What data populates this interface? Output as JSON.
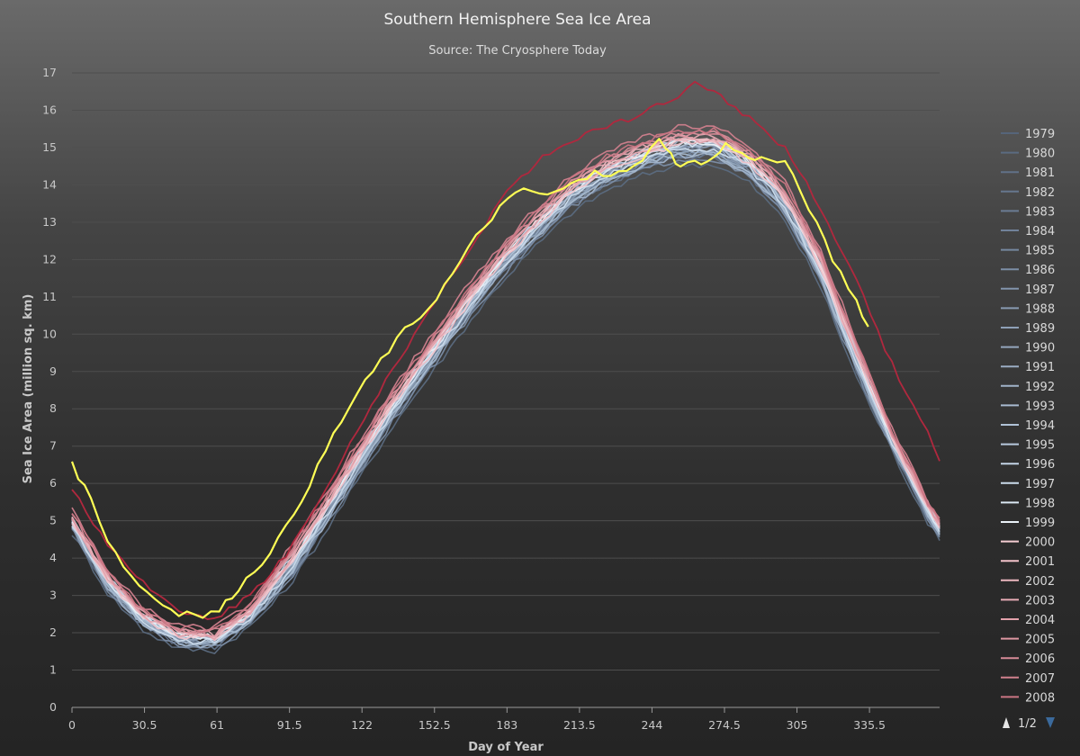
{
  "chart_data": {
    "type": "line",
    "title": "Southern Hemisphere Sea Ice Area",
    "subtitle": "Source: The Cryosphere Today",
    "xlabel": "Day of Year",
    "ylabel": "Sea Ice Area (million sq. km)",
    "xlim": [
      0,
      365
    ],
    "ylim": [
      0,
      17
    ],
    "x_ticks": [
      "0",
      "30.5",
      "61",
      "91.5",
      "122",
      "152.5",
      "183",
      "213.5",
      "244",
      "274.5",
      "305",
      "335.5"
    ],
    "y_ticks": [
      "0",
      "1",
      "2",
      "3",
      "4",
      "5",
      "6",
      "7",
      "8",
      "9",
      "10",
      "11",
      "12",
      "13",
      "14",
      "15",
      "16",
      "17"
    ],
    "grid": "horizontal",
    "legend_position": "right",
    "legend_pager": "1/2",
    "series_template": {
      "x": [
        0,
        15,
        30,
        45,
        60,
        75,
        90,
        105,
        120,
        135,
        150,
        165,
        180,
        195,
        210,
        225,
        240,
        255,
        270,
        285,
        300,
        315,
        330,
        345,
        360,
        365
      ],
      "y": [
        5.0,
        3.4,
        2.4,
        1.9,
        1.85,
        2.5,
        3.7,
        5.1,
        6.6,
        8.1,
        9.4,
        10.7,
        11.9,
        12.9,
        13.8,
        14.4,
        14.8,
        15.1,
        15.1,
        14.6,
        13.6,
        11.8,
        9.4,
        7.2,
        5.3,
        4.8
      ]
    },
    "series": [
      {
        "name": "1979",
        "color": "#56657a",
        "offset": -0.15
      },
      {
        "name": "1980",
        "color": "#5b6b81",
        "offset": -0.55
      },
      {
        "name": "1981",
        "color": "#617188",
        "offset": -0.35
      },
      {
        "name": "1982",
        "color": "#66778e",
        "offset": -0.25
      },
      {
        "name": "1983",
        "color": "#6b7c94",
        "offset": -0.3
      },
      {
        "name": "1984",
        "color": "#71829a",
        "offset": -0.2
      },
      {
        "name": "1985",
        "color": "#7688a0",
        "offset": -0.1
      },
      {
        "name": "1986",
        "color": "#7c8ea6",
        "offset": -0.4
      },
      {
        "name": "1987",
        "color": "#8294ac",
        "offset": -0.05
      },
      {
        "name": "1988",
        "color": "#889ab1",
        "offset": -0.15
      },
      {
        "name": "1989",
        "color": "#8ea0b7",
        "offset": -0.1
      },
      {
        "name": "1990",
        "color": "#94a6bd",
        "offset": -0.2
      },
      {
        "name": "1991",
        "color": "#9aacc3",
        "offset": 0.0
      },
      {
        "name": "1992",
        "color": "#a1b3c9",
        "offset": -0.3
      },
      {
        "name": "1993",
        "color": "#a8bad0",
        "offset": -0.25
      },
      {
        "name": "1994",
        "color": "#b0c2d7",
        "offset": -0.05
      },
      {
        "name": "1995",
        "color": "#b8cade",
        "offset": 0.05
      },
      {
        "name": "1996",
        "color": "#c2d3e5",
        "offset": 0.1
      },
      {
        "name": "1997",
        "color": "#ccdcec",
        "offset": -0.15
      },
      {
        "name": "1998",
        "color": "#dbe8f3",
        "offset": 0.0
      },
      {
        "name": "1999",
        "color": "#eaf2f8",
        "offset": 0.05
      },
      {
        "name": "2000",
        "color": "#f5cdd3",
        "offset": 0.1
      },
      {
        "name": "2001",
        "color": "#f1c2c9",
        "offset": 0.0
      },
      {
        "name": "2002",
        "color": "#ecb7bf",
        "offset": 0.15
      },
      {
        "name": "2003",
        "color": "#e7acb5",
        "offset": 0.2
      },
      {
        "name": "2004",
        "color": "#e2a1ab",
        "offset": 0.1
      },
      {
        "name": "2005",
        "color": "#dc96a1",
        "offset": 0.25
      },
      {
        "name": "2006",
        "color": "#d68b97",
        "offset": 0.3
      },
      {
        "name": "2007",
        "color": "#d0808d",
        "offset": 0.45
      },
      {
        "name": "2008",
        "color": "#ca7583",
        "offset": 0.35
      }
    ],
    "extra_series": [
      {
        "color": "#b0283e",
        "x": [
          0,
          15,
          30,
          45,
          60,
          75,
          90,
          105,
          120,
          135,
          150,
          165,
          180,
          195,
          210,
          225,
          240,
          255,
          262,
          270,
          285,
          300,
          315,
          330,
          345,
          360,
          365
        ],
        "y": [
          5.9,
          4.3,
          3.3,
          2.6,
          2.4,
          3.0,
          4.1,
          5.6,
          7.4,
          9.1,
          10.6,
          12.0,
          13.6,
          14.6,
          15.2,
          15.6,
          15.9,
          16.4,
          16.8,
          16.5,
          15.8,
          15.0,
          13.4,
          11.4,
          9.2,
          7.4,
          6.6
        ]
      },
      {
        "color": "#ffff55",
        "x": [
          0,
          8,
          15,
          25,
          35,
          45,
          55,
          62,
          70,
          80,
          90,
          100,
          110,
          120,
          130,
          140,
          150,
          160,
          170,
          180,
          190,
          200,
          210,
          220,
          230,
          240,
          247,
          252,
          256,
          262,
          270,
          275,
          282,
          290,
          300,
          310,
          320,
          330,
          335
        ],
        "y": [
          6.5,
          5.6,
          4.5,
          3.5,
          2.9,
          2.5,
          2.45,
          2.6,
          3.2,
          3.9,
          4.8,
          6.0,
          7.3,
          8.4,
          9.3,
          10.1,
          10.7,
          11.6,
          12.6,
          13.4,
          13.9,
          13.7,
          14.0,
          14.3,
          14.3,
          14.6,
          15.3,
          14.8,
          14.5,
          14.6,
          14.7,
          15.1,
          14.8,
          14.7,
          14.6,
          13.4,
          12.0,
          10.9,
          10.2
        ]
      }
    ]
  }
}
